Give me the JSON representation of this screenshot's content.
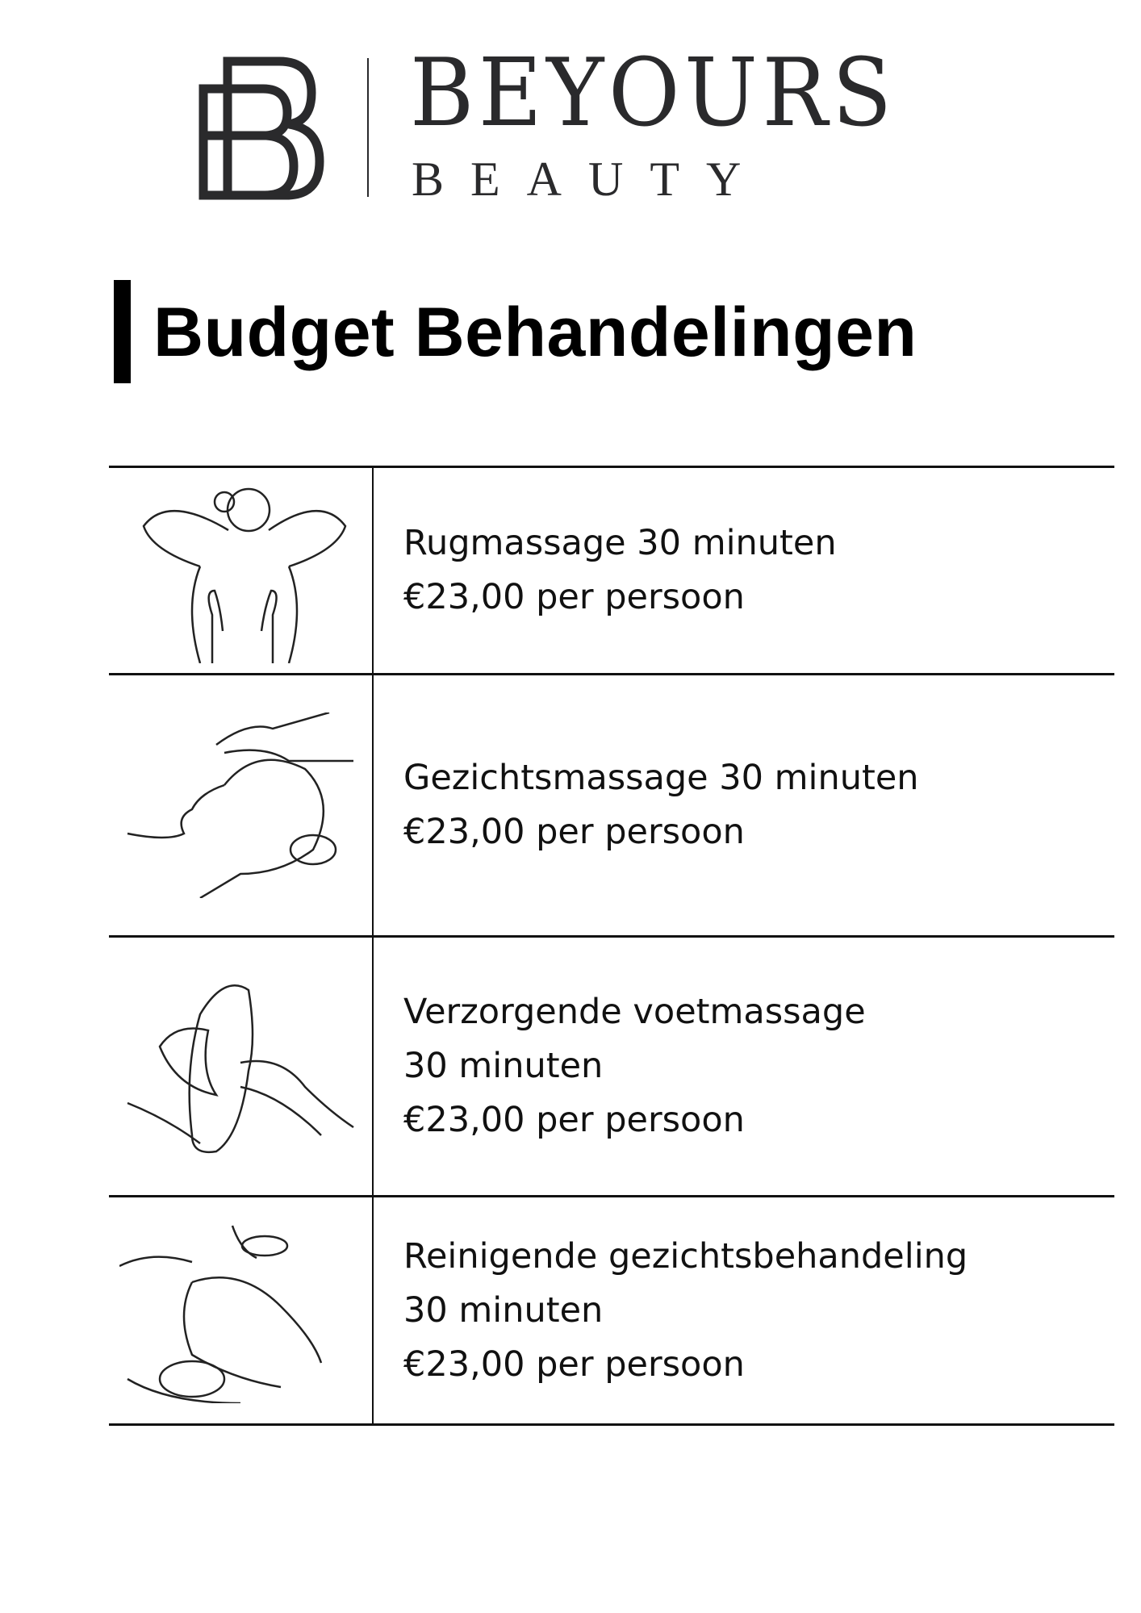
{
  "header": {
    "brand_name": "BEYOURS",
    "brand_sub": "BEAUTY",
    "logo_monogram": "BB"
  },
  "page_title": "Budget Behandelingen",
  "treatments": [
    {
      "icon": "back-massage-illustration",
      "lines": [
        "Rugmassage 30 minuten",
        "€23,00 per persoon"
      ]
    },
    {
      "icon": "face-massage-illustration",
      "lines": [
        "Gezichtsmassage 30 minuten",
        "€23,00 per persoon"
      ]
    },
    {
      "icon": "foot-massage-illustration",
      "lines": [
        "Verzorgende voetmassage",
        "30 minuten",
        "€23,00 per persoon"
      ]
    },
    {
      "icon": "facial-cleansing-illustration",
      "lines": [
        "Reinigende gezichtsbehandeling",
        "30 minuten",
        "€23,00 per persoon"
      ]
    }
  ],
  "colors": {
    "text": "#111111",
    "logo": "#2a2a2c"
  }
}
